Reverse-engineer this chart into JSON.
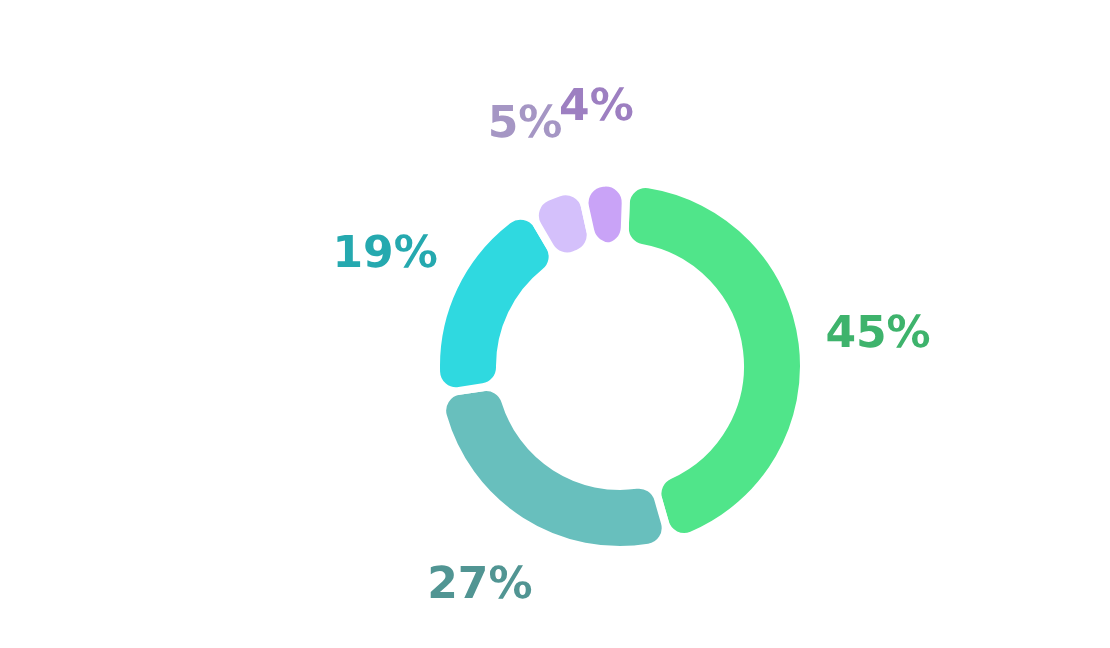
{
  "chart_data": {
    "type": "donut",
    "categories": [
      null,
      null,
      null,
      null,
      null
    ],
    "values": [
      45,
      27,
      19,
      5,
      4
    ],
    "colors": [
      "#50e58a",
      "#68bfbd",
      "#2fd9e0",
      "#d4c0fb",
      "#c9a3f7"
    ],
    "value_labels": [
      "45%",
      "27%",
      "19%",
      "5%",
      "4%"
    ]
  }
}
